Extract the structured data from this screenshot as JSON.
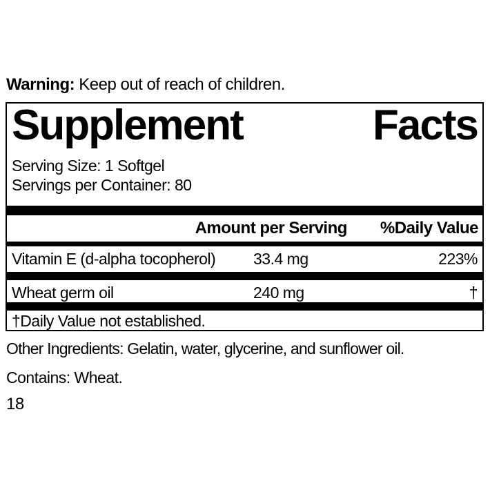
{
  "page": {
    "background_color": "#ffffff",
    "text_color": "#000000"
  },
  "warning": {
    "label": "Warning:",
    "text": " Keep out of reach of children."
  },
  "panel": {
    "title_word_1": "Supplement",
    "title_word_2": "Facts",
    "serving_size": "Serving Size: 1 Softgel",
    "servings_per_container": "Servings per Container: 80",
    "columns": {
      "amount_header": "Amount per Serving",
      "daily_value_header": "%Daily Value"
    },
    "rows": [
      {
        "name": "Vitamin E (d-alpha tocopherol)",
        "amount": "33.4 mg",
        "daily_value": "223%"
      },
      {
        "name": "Wheat germ oil",
        "amount": "240 mg",
        "daily_value": "†"
      }
    ],
    "footnote": "†Daily Value not established."
  },
  "other_ingredients": "Other Ingredients: Gelatin, water, glycerine, and sunflower oil.",
  "contains": "Contains: Wheat.",
  "page_number": "18"
}
